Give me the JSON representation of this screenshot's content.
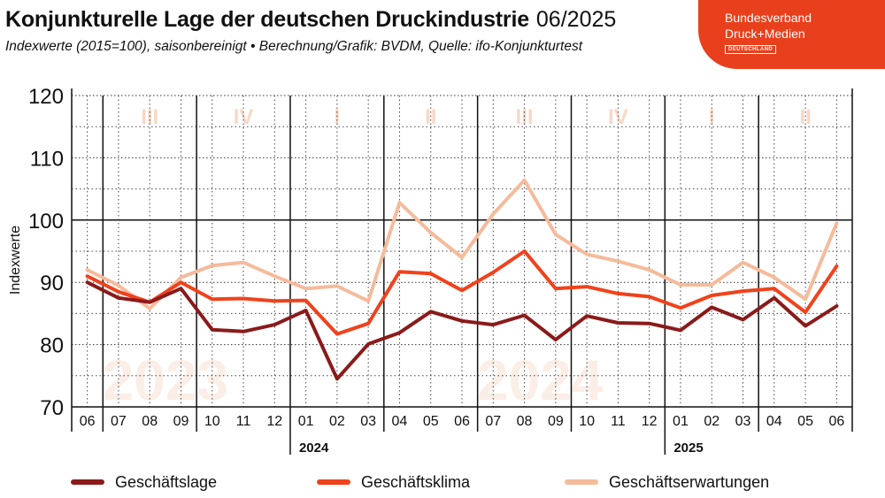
{
  "header": {
    "title": "Konjunkturelle Lage der deutschen Druckindustrie",
    "title_date": "06/2025",
    "subtitle": "Indexwerte (2015=100), saisonbereinigt • Berechnung/Grafik: BVDM, Quelle: ifo-Konjunkturtest"
  },
  "logo": {
    "line1": "Bundesverband",
    "line2": "Druck+Medien",
    "badge": "DEUTSCHLAND",
    "color": "#e8401c"
  },
  "chart_data": {
    "type": "line",
    "ylabel": "Indexwerte",
    "ylim": [
      70,
      120
    ],
    "yticks": [
      "70",
      "80",
      "90",
      "100",
      "110",
      "120"
    ],
    "grid": true,
    "x": [
      "06",
      "07",
      "08",
      "09",
      "10",
      "11",
      "12",
      "01",
      "02",
      "03",
      "04",
      "05",
      "06",
      "07",
      "08",
      "09",
      "10",
      "11",
      "12",
      "01",
      "02",
      "03",
      "04",
      "05",
      "06"
    ],
    "year_labels": [
      {
        "label": "2024",
        "start_index": 7
      },
      {
        "label": "2025",
        "start_index": 19
      }
    ],
    "quarter_labels": [
      {
        "label": "III",
        "start_index": 1,
        "end_index": 3
      },
      {
        "label": "IV",
        "start_index": 4,
        "end_index": 6
      },
      {
        "label": "I",
        "start_index": 7,
        "end_index": 9
      },
      {
        "label": "II",
        "start_index": 10,
        "end_index": 12
      },
      {
        "label": "III",
        "start_index": 13,
        "end_index": 15
      },
      {
        "label": "IV",
        "start_index": 16,
        "end_index": 18
      },
      {
        "label": "I",
        "start_index": 19,
        "end_index": 21
      },
      {
        "label": "II",
        "start_index": 22,
        "end_index": 24
      }
    ],
    "background_years": [
      {
        "label": "2023",
        "center_index": 2.5
      },
      {
        "label": "2024",
        "center_index": 14.5
      }
    ],
    "reference_line": 100,
    "series": [
      {
        "name": "Geschäftslage",
        "color": "#8b1a1a",
        "values": [
          90.0,
          87.5,
          86.8,
          89.0,
          82.4,
          82.1,
          83.2,
          85.5,
          74.5,
          80.1,
          81.9,
          85.3,
          83.8,
          83.2,
          84.7,
          80.8,
          84.6,
          83.5,
          83.4,
          82.3,
          86.0,
          84.0,
          87.5,
          83.0,
          86.2
        ]
      },
      {
        "name": "Geschäftsklima",
        "color": "#f0421c",
        "values": [
          91.0,
          88.5,
          86.8,
          90.0,
          87.3,
          87.4,
          87.0,
          87.1,
          81.7,
          83.4,
          91.7,
          91.4,
          88.7,
          91.6,
          95.0,
          89.0,
          89.3,
          88.2,
          87.7,
          85.9,
          87.9,
          88.6,
          89.0,
          85.2,
          92.6
        ]
      },
      {
        "name": "Geschäftserwartungen",
        "color": "#f5bb9b",
        "values": [
          92.0,
          89.5,
          85.8,
          90.8,
          92.7,
          93.2,
          91.0,
          89.0,
          89.4,
          87.0,
          102.8,
          98.0,
          94.0,
          101.0,
          106.4,
          97.7,
          94.5,
          93.4,
          92.0,
          89.6,
          89.6,
          93.2,
          90.8,
          87.3,
          99.5
        ]
      }
    ]
  }
}
